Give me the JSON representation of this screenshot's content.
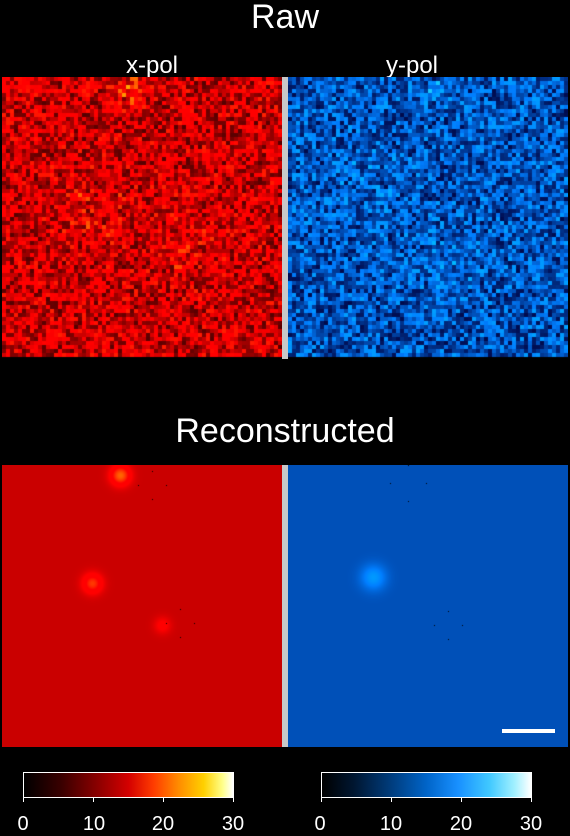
{
  "titles": {
    "raw": "Raw",
    "reconstructed": "Reconstructed"
  },
  "channels": {
    "x": "x-pol",
    "y": "y-pol"
  },
  "colorbars": {
    "x": {
      "ticks": [
        "0",
        "10",
        "20",
        "30"
      ],
      "colormap": "black-red-yellow-white"
    },
    "y": {
      "ticks": [
        "0",
        "10",
        "20",
        "30"
      ],
      "colormap": "black-blue-cyan-white"
    }
  },
  "colors": {
    "background": "#000000",
    "divider": "#c8c8c8",
    "x_base": "#c80000",
    "y_base": "#0a5ac8"
  }
}
